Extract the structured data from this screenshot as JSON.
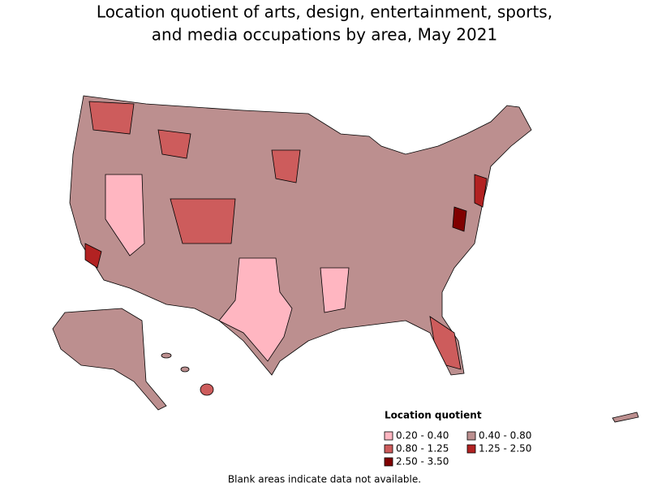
{
  "title_lines": [
    "Location quotient of arts, design, entertainment, sports,",
    "and media occupations by area, May 2021"
  ],
  "legend": {
    "title": "Location quotient",
    "items": [
      {
        "label": "0.20 - 0.40",
        "color": "#ffb6c1"
      },
      {
        "label": "0.40 - 0.80",
        "color": "#bc8f8f"
      },
      {
        "label": "0.80 - 1.25",
        "color": "#cd5c5c"
      },
      {
        "label": "1.25 - 2.50",
        "color": "#b22222"
      },
      {
        "label": "2.50 - 3.50",
        "color": "#800000"
      }
    ]
  },
  "note": "Blank areas indicate data not available."
}
